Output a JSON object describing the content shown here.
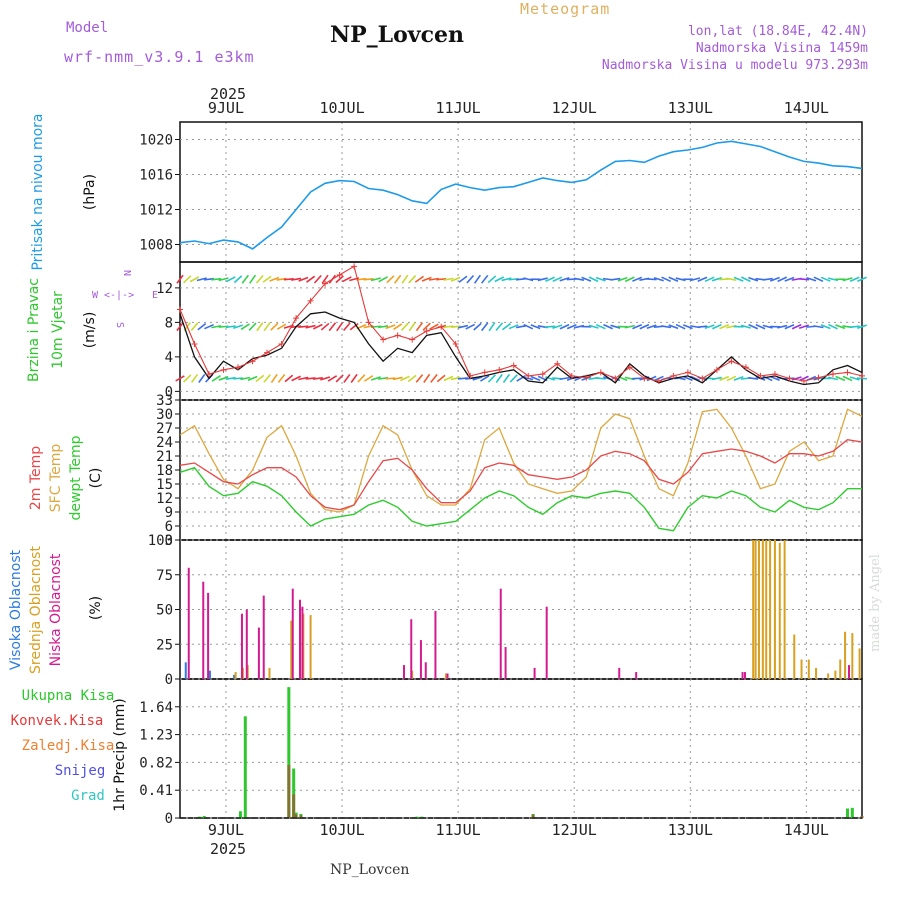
{
  "header": {
    "model_label": "Model",
    "model_version": "wrf-nmm_v3.9.1 e3km",
    "station_title": "NP_Lovcen",
    "meteogram_label": "Meteogram",
    "lonlat": "lon,lat (18.84E, 42.4N)",
    "elevation": "Nadmorska Visina 1459m",
    "model_elevation": "Nadmorska Visina u modelu 973.293m"
  },
  "footer_station": "NP_Lovcen",
  "watermark": "made by Angel",
  "time_axis": {
    "year": "2025",
    "days": [
      "9JUL",
      "10JUL",
      "11JUL",
      "12JUL",
      "13JUL",
      "14JUL"
    ],
    "range_hours": [
      0,
      141
    ]
  },
  "colors": {
    "pressure": "#1e9be8",
    "wind_speed": "#111111",
    "wind_gust": "#e53a3a",
    "t2m": "#e84848",
    "tsfc": "#dda840",
    "dewpoint": "#2ecc2e",
    "cloud_high": "#2e7be0",
    "cloud_mid": "#d8a020",
    "cloud_low": "#d41a90",
    "precip_total": "#2ec82e",
    "precip_conv": "#e53a3a",
    "precip_frozen": "#f08030",
    "snow": "#5050e0",
    "grad": "#30c8c0"
  },
  "chart_data": [
    {
      "type": "line",
      "title": "Pritisak na nivou mora",
      "ylabel": "(hPa)",
      "ylim": [
        1006,
        1022
      ],
      "yticks": [
        1008,
        1012,
        1016,
        1020
      ],
      "series": [
        {
          "name": "Pritisak na nivou mora",
          "x": [
            0,
            3,
            6,
            9,
            12,
            15,
            18,
            21,
            24,
            27,
            30,
            33,
            36,
            39,
            42,
            45,
            48,
            51,
            54,
            57,
            60,
            63,
            66,
            69,
            72,
            75,
            78,
            81,
            84,
            87,
            90,
            93,
            96,
            99,
            102,
            105,
            108,
            111,
            114,
            117,
            120,
            123,
            126,
            129,
            132,
            135,
            138,
            141
          ],
          "y": [
            1008.2,
            1008.4,
            1008.1,
            1008.5,
            1008.3,
            1007.5,
            1008.8,
            1010.0,
            1012.0,
            1014.0,
            1015.0,
            1015.3,
            1015.2,
            1014.4,
            1014.2,
            1013.7,
            1013.0,
            1012.7,
            1014.3,
            1014.9,
            1014.5,
            1014.2,
            1014.5,
            1014.6,
            1015.1,
            1015.6,
            1015.3,
            1015.1,
            1015.4,
            1016.5,
            1017.5,
            1017.6,
            1017.4,
            1018.1,
            1018.6,
            1018.8,
            1019.1,
            1019.6,
            1019.8,
            1019.5,
            1019.2,
            1018.6,
            1018.0,
            1017.5,
            1017.3,
            1017.0,
            1016.9,
            1016.7
          ]
        }
      ]
    },
    {
      "type": "line",
      "title": "10m Vjetar Brzina i Pravac",
      "ylabel": "(m/s)",
      "compass": {
        "n": "N",
        "s": "S",
        "e": "E",
        "w": "W",
        "arrows": "<-|->"
      },
      "ylim": [
        -1,
        15
      ],
      "yticks": [
        0,
        4,
        8,
        12
      ],
      "series": [
        {
          "name": "Brzina vjetra",
          "x": [
            0,
            3,
            6,
            9,
            12,
            15,
            18,
            21,
            24,
            27,
            30,
            33,
            36,
            39,
            42,
            45,
            48,
            51,
            54,
            57,
            60,
            63,
            66,
            69,
            72,
            75,
            78,
            81,
            84,
            87,
            90,
            93,
            96,
            99,
            102,
            105,
            108,
            111,
            114,
            117,
            120,
            123,
            126,
            129,
            132,
            135,
            138,
            141
          ],
          "y": [
            9.0,
            4.0,
            1.5,
            3.5,
            2.5,
            3.8,
            4.2,
            5.0,
            7.5,
            9.0,
            9.2,
            8.5,
            8.0,
            5.5,
            3.5,
            5.0,
            4.5,
            6.5,
            6.8,
            4.0,
            1.5,
            1.8,
            2.2,
            2.5,
            1.2,
            1.0,
            2.8,
            1.5,
            1.8,
            2.2,
            1.0,
            3.2,
            1.8,
            1.0,
            1.5,
            1.8,
            1.0,
            2.5,
            4.0,
            2.5,
            1.5,
            1.8,
            1.2,
            0.8,
            1.0,
            2.5,
            3.0,
            2.2
          ]
        },
        {
          "name": "Udari vjetra",
          "x": [
            0,
            3,
            6,
            9,
            12,
            15,
            18,
            21,
            24,
            27,
            30,
            33,
            36,
            39,
            42,
            45,
            48,
            51,
            54,
            57,
            60,
            63,
            66,
            69,
            72,
            75,
            78,
            81,
            84,
            87,
            90,
            93,
            96,
            99,
            102,
            105,
            108,
            111,
            114,
            117,
            120,
            123,
            126,
            129,
            132,
            135,
            138,
            141
          ],
          "y": [
            9.5,
            5.5,
            2.0,
            2.5,
            2.8,
            3.5,
            4.5,
            5.5,
            8.5,
            10.5,
            12.5,
            13.5,
            14.5,
            8.0,
            6.0,
            6.5,
            6.0,
            7.0,
            7.5,
            5.5,
            1.8,
            2.2,
            2.5,
            3.0,
            1.8,
            2.0,
            3.2,
            1.8,
            1.6,
            2.2,
            1.5,
            2.8,
            1.5,
            1.2,
            1.8,
            2.2,
            1.5,
            2.5,
            3.5,
            2.8,
            1.8,
            2.0,
            1.5,
            1.2,
            1.6,
            2.0,
            2.2,
            1.8
          ]
        }
      ]
    },
    {
      "type": "line",
      "title": "2m Temp / SFC Temp / dewpt Temp",
      "ylabel": "(C)",
      "series_labels": [
        "2m Temp",
        "SFC Temp",
        "dewpt Temp"
      ],
      "ylim": [
        3,
        33
      ],
      "yticks": [
        3,
        6,
        9,
        12,
        15,
        18,
        21,
        24,
        27,
        30,
        33
      ],
      "series": [
        {
          "name": "2m Temp",
          "x": [
            0,
            3,
            6,
            9,
            12,
            15,
            18,
            21,
            24,
            27,
            30,
            33,
            36,
            39,
            42,
            45,
            48,
            51,
            54,
            57,
            60,
            63,
            66,
            69,
            72,
            75,
            78,
            81,
            84,
            87,
            90,
            93,
            96,
            99,
            102,
            105,
            108,
            111,
            114,
            117,
            120,
            123,
            126,
            129,
            132,
            135,
            138,
            141
          ],
          "y": [
            19.0,
            19.5,
            17.5,
            15.5,
            15.0,
            17.0,
            18.5,
            18.5,
            16.5,
            12.5,
            10.0,
            9.5,
            10.5,
            15.5,
            20.0,
            20.5,
            18.0,
            14.0,
            11.0,
            11.0,
            13.5,
            18.5,
            19.5,
            19.0,
            17.0,
            16.5,
            16.0,
            16.5,
            18.0,
            21.0,
            22.0,
            21.5,
            20.0,
            16.0,
            15.0,
            17.5,
            21.5,
            22.0,
            22.5,
            22.0,
            21.0,
            19.5,
            21.5,
            21.5,
            21.0,
            22.0,
            24.5,
            24.0
          ]
        },
        {
          "name": "SFC Temp",
          "x": [
            0,
            3,
            6,
            9,
            12,
            15,
            18,
            21,
            24,
            27,
            30,
            33,
            36,
            39,
            42,
            45,
            48,
            51,
            54,
            57,
            60,
            63,
            66,
            69,
            72,
            75,
            78,
            81,
            84,
            87,
            90,
            93,
            96,
            99,
            102,
            105,
            108,
            111,
            114,
            117,
            120,
            123,
            126,
            129,
            132,
            135,
            138,
            141
          ],
          "y": [
            25.5,
            27.5,
            21.5,
            16.0,
            14.0,
            18.0,
            25.0,
            27.5,
            21.0,
            13.0,
            9.5,
            9.0,
            10.5,
            21.0,
            27.5,
            25.5,
            18.0,
            12.5,
            10.5,
            10.5,
            14.0,
            24.5,
            27.0,
            19.5,
            15.0,
            14.0,
            13.0,
            13.5,
            16.5,
            27.0,
            30.0,
            29.0,
            21.0,
            14.0,
            12.5,
            19.5,
            30.5,
            31.0,
            27.0,
            21.0,
            14.0,
            15.0,
            22.0,
            24.0,
            20.0,
            21.0,
            31.0,
            29.5
          ]
        },
        {
          "name": "dewpt Temp",
          "x": [
            0,
            3,
            6,
            9,
            12,
            15,
            18,
            21,
            24,
            27,
            30,
            33,
            36,
            39,
            42,
            45,
            48,
            51,
            54,
            57,
            60,
            63,
            66,
            69,
            72,
            75,
            78,
            81,
            84,
            87,
            90,
            93,
            96,
            99,
            102,
            105,
            108,
            111,
            114,
            117,
            120,
            123,
            126,
            129,
            132,
            135,
            138,
            141
          ],
          "y": [
            17.5,
            18.5,
            14.5,
            12.5,
            13.0,
            15.5,
            14.5,
            12.5,
            9.0,
            6.0,
            7.5,
            8.0,
            8.5,
            10.5,
            11.5,
            10.0,
            7.0,
            6.0,
            6.5,
            7.0,
            9.5,
            12.0,
            13.5,
            12.5,
            10.0,
            8.5,
            11.0,
            12.5,
            12.0,
            13.0,
            13.5,
            13.0,
            10.0,
            5.5,
            5.0,
            10.0,
            12.5,
            12.0,
            13.5,
            12.5,
            10.0,
            9.0,
            11.5,
            10.0,
            9.5,
            11.0,
            14.0,
            14.0
          ]
        }
      ]
    },
    {
      "type": "bar",
      "title": "Visoka / Srednja / Niska Oblacnost",
      "ylabel": "(%)",
      "series_labels": [
        "Visoka Oblacnost",
        "Srednja Oblacnost",
        "Niska Oblacnost"
      ],
      "ylim": [
        0,
        100
      ],
      "yticks": [
        0,
        25,
        50,
        75,
        100
      ],
      "series": [
        {
          "name": "Visoka Oblacnost",
          "x": [
            1.5,
            6.5,
            11.5
          ],
          "y": [
            12,
            6,
            3
          ]
        },
        {
          "name": "Srednja Oblacnost",
          "x": [
            11.5,
            13,
            14,
            18.5,
            23,
            25.5,
            27,
            48,
            55,
            118.5,
            119,
            119.7,
            120.5,
            121.2,
            122,
            123,
            124,
            125,
            127,
            128.5,
            130,
            131.5,
            134,
            135.5,
            136.5,
            137.5,
            139,
            140.5
          ],
          "y": [
            5,
            8,
            10,
            8,
            42,
            47,
            46,
            6,
            4,
            100,
            100,
            100,
            100,
            100,
            100,
            100,
            98,
            100,
            32,
            14,
            14,
            8,
            4,
            6,
            14,
            34,
            33,
            22
          ]
        },
        {
          "name": "Niska Oblacnost",
          "x": [
            1.5,
            4.5,
            5.5,
            12.5,
            13.5,
            16,
            17,
            23,
            24.5,
            25,
            46,
            47.5,
            49.5,
            50.5,
            52.5,
            55,
            66,
            67,
            73,
            75.5,
            90.5,
            94,
            116,
            116.5,
            138
          ],
          "y": [
            80,
            70,
            62,
            47,
            50,
            37,
            60,
            65,
            57,
            52,
            10,
            43,
            28,
            12,
            49,
            4,
            65,
            23,
            8,
            52,
            8,
            5,
            5,
            5,
            10
          ]
        }
      ]
    },
    {
      "type": "bar",
      "title": "1hr Precip",
      "ylabel": "1hr Precip (mm)",
      "series_labels": [
        "Ukupna Kisa",
        "Konvek.Kisa",
        "Zaledj.Kisa",
        "Snijeg",
        "Grad"
      ],
      "ylim": [
        0,
        2.05
      ],
      "yticks": [
        0,
        0.41,
        0.82,
        1.23,
        1.64
      ],
      "series": [
        {
          "name": "Ukupna Kisa",
          "x": [
            4,
            5,
            12.5,
            13.5,
            22.5,
            23.5,
            24,
            25,
            49,
            50,
            73,
            138,
            139
          ],
          "y": [
            0.02,
            0.03,
            0.1,
            1.5,
            1.93,
            0.73,
            0.08,
            0.06,
            0.02,
            0.02,
            0.06,
            0.14,
            0.15
          ]
        },
        {
          "name": "Konvek.Kisa",
          "x": [
            22.5,
            23.5,
            24,
            25,
            73,
            141
          ],
          "y": [
            0.78,
            0.35,
            0.05,
            0.04,
            0.05,
            0.03
          ]
        },
        {
          "name": "Zaledj.Kisa",
          "x": [],
          "y": []
        },
        {
          "name": "Snijeg",
          "x": [],
          "y": []
        },
        {
          "name": "Grad",
          "x": [],
          "y": []
        }
      ]
    }
  ]
}
